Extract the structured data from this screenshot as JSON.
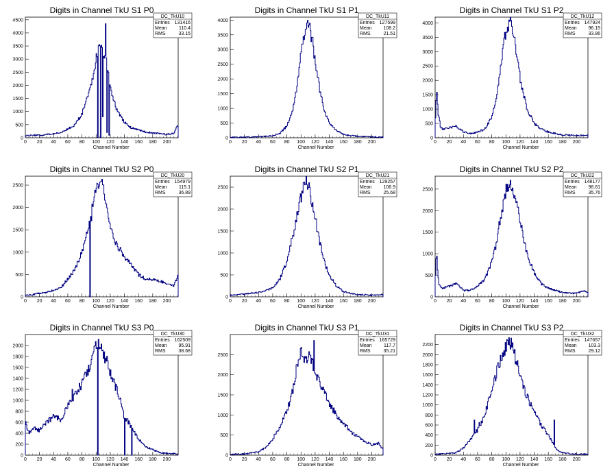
{
  "chart_data": [
    {
      "type": "histogram",
      "title": "Digits in Channel TkU S1 P0",
      "xlabel": "Channel Number",
      "ylabel": "",
      "xlim": [
        0,
        216
      ],
      "ylim": [
        0,
        4600
      ],
      "xticks": [
        0,
        20,
        40,
        60,
        80,
        100,
        120,
        140,
        160,
        180,
        200
      ],
      "yticks": [
        0,
        500,
        1000,
        1500,
        2000,
        2500,
        3000,
        3500,
        4000,
        4500
      ],
      "stats": {
        "name": "DC_TkU10",
        "entries": "131416",
        "mean": "110.4",
        "rms": "33.15"
      },
      "x": [
        0,
        10,
        20,
        30,
        40,
        50,
        60,
        70,
        80,
        90,
        95,
        100,
        104,
        106,
        108,
        110,
        112,
        114,
        116,
        120,
        130,
        140,
        150,
        160,
        170,
        180,
        190,
        200,
        210,
        215
      ],
      "values": [
        80,
        100,
        90,
        130,
        150,
        200,
        330,
        500,
        900,
        1700,
        2300,
        3000,
        3500,
        3520,
        3400,
        3300,
        3200,
        3000,
        2700,
        1900,
        1000,
        600,
        380,
        300,
        220,
        180,
        150,
        130,
        160,
        480
      ],
      "spikes": [
        {
          "x": 102,
          "value": 0
        },
        {
          "x": 106,
          "value": 0
        },
        {
          "x": 109,
          "value": 800
        },
        {
          "x": 113,
          "value": 4350
        },
        {
          "x": 115,
          "value": 200
        },
        {
          "x": 118,
          "value": 100
        }
      ]
    },
    {
      "type": "histogram",
      "title": "Digits in Channel TkU S1 P1",
      "xlabel": "Channel Number",
      "ylabel": "",
      "xlim": [
        0,
        216
      ],
      "ylim": [
        0,
        4100
      ],
      "xticks": [
        0,
        20,
        40,
        60,
        80,
        100,
        120,
        140,
        160,
        180,
        200
      ],
      "yticks": [
        0,
        500,
        1000,
        1500,
        2000,
        2500,
        3000,
        3500,
        4000
      ],
      "stats": {
        "name": "DC_TkU11",
        "entries": "127599",
        "mean": "108.2",
        "rms": "21.51"
      },
      "x": [
        0,
        20,
        40,
        60,
        70,
        80,
        88,
        94,
        100,
        104,
        108,
        110,
        112,
        116,
        120,
        126,
        132,
        140,
        150,
        160,
        180,
        200,
        215
      ],
      "values": [
        10,
        20,
        30,
        70,
        150,
        400,
        900,
        1700,
        2800,
        3500,
        3800,
        3850,
        3750,
        3300,
        2600,
        1700,
        1000,
        500,
        250,
        120,
        50,
        30,
        20
      ],
      "spikes": []
    },
    {
      "type": "histogram",
      "title": "Digits in Channel TkU S1 P2",
      "xlabel": "Channel Number",
      "ylabel": "",
      "xlim": [
        0,
        216
      ],
      "ylim": [
        0,
        4200
      ],
      "xticks": [
        0,
        20,
        40,
        60,
        80,
        100,
        120,
        140,
        160,
        180,
        200
      ],
      "yticks": [
        0,
        500,
        1000,
        1500,
        2000,
        2500,
        3000,
        3500,
        4000
      ],
      "stats": {
        "name": "DC_TkU12",
        "entries": "147924",
        "mean": "96.15",
        "rms": "33.86"
      },
      "x": [
        0,
        2,
        4,
        8,
        12,
        20,
        30,
        40,
        50,
        60,
        70,
        80,
        86,
        92,
        98,
        102,
        106,
        110,
        116,
        122,
        130,
        140,
        150,
        160,
        180,
        200,
        215
      ],
      "values": [
        300,
        1750,
        900,
        350,
        300,
        350,
        400,
        200,
        150,
        200,
        300,
        700,
        1300,
        2300,
        3400,
        3900,
        4000,
        3700,
        2800,
        1800,
        1000,
        500,
        300,
        200,
        100,
        80,
        80
      ],
      "spikes": []
    },
    {
      "type": "histogram",
      "title": "Digits in Channel TkU S2 P0",
      "xlabel": "Channel Number",
      "ylabel": "",
      "xlim": [
        0,
        216
      ],
      "ylim": [
        0,
        2700
      ],
      "xticks": [
        0,
        20,
        40,
        60,
        80,
        100,
        120,
        140,
        160,
        180,
        200
      ],
      "yticks": [
        0,
        500,
        1000,
        1500,
        2000,
        2500
      ],
      "stats": {
        "name": "DC_TkU20",
        "entries": "154979",
        "mean": "115.1",
        "rms": "36.89"
      },
      "x": [
        0,
        10,
        20,
        30,
        40,
        50,
        60,
        70,
        80,
        86,
        92,
        96,
        100,
        104,
        108,
        112,
        116,
        120,
        126,
        132,
        140,
        146,
        150,
        156,
        160,
        170,
        180,
        190,
        200,
        210,
        215
      ],
      "values": [
        30,
        50,
        80,
        100,
        150,
        200,
        400,
        600,
        1000,
        1400,
        1800,
        2200,
        2400,
        2550,
        2500,
        2300,
        2000,
        1600,
        1300,
        1100,
        900,
        800,
        700,
        600,
        500,
        400,
        380,
        350,
        300,
        250,
        450
      ],
      "spikes": [
        {
          "x": 93,
          "value": 1700
        },
        {
          "x": 91,
          "value": 0
        }
      ]
    },
    {
      "type": "histogram",
      "title": "Digits in Channel TkU S2 P1",
      "xlabel": "Channel Number",
      "ylabel": "",
      "xlim": [
        0,
        216
      ],
      "ylim": [
        0,
        2750
      ],
      "xticks": [
        0,
        20,
        40,
        60,
        80,
        100,
        120,
        140,
        160,
        180,
        200
      ],
      "yticks": [
        0,
        500,
        1000,
        1500,
        2000,
        2500
      ],
      "stats": {
        "name": "DC_TkU21",
        "entries": "129257",
        "mean": "106.9",
        "rms": "25.68"
      },
      "x": [
        0,
        20,
        40,
        60,
        70,
        80,
        90,
        96,
        102,
        106,
        110,
        114,
        120,
        126,
        132,
        140,
        150,
        160,
        180,
        200,
        215
      ],
      "values": [
        40,
        60,
        100,
        200,
        400,
        800,
        1500,
        2000,
        2400,
        2600,
        2550,
        2300,
        1800,
        1300,
        850,
        500,
        250,
        120,
        50,
        40,
        50
      ],
      "spikes": []
    },
    {
      "type": "histogram",
      "title": "Digits in Channel TkU S2 P2",
      "xlabel": "Channel Number",
      "ylabel": "",
      "xlim": [
        0,
        216
      ],
      "ylim": [
        0,
        2800
      ],
      "xticks": [
        0,
        20,
        40,
        60,
        80,
        100,
        120,
        140,
        160,
        180,
        200
      ],
      "yticks": [
        0,
        500,
        1000,
        1500,
        2000,
        2500
      ],
      "stats": {
        "name": "DC_TkU22",
        "entries": "148177",
        "mean": "98.61",
        "rms": "35.76"
      },
      "x": [
        0,
        2,
        5,
        10,
        20,
        30,
        40,
        50,
        60,
        70,
        80,
        86,
        92,
        98,
        102,
        106,
        110,
        116,
        122,
        130,
        140,
        150,
        160,
        180,
        200,
        210,
        215
      ],
      "values": [
        300,
        1000,
        300,
        200,
        250,
        300,
        150,
        150,
        250,
        400,
        800,
        1200,
        1800,
        2300,
        2550,
        2650,
        2500,
        2100,
        1600,
        1000,
        550,
        300,
        200,
        100,
        80,
        150,
        100
      ],
      "spikes": []
    },
    {
      "type": "histogram",
      "title": "Digits in Channel TkU S3 P0",
      "xlabel": "Channel Number",
      "ylabel": "",
      "xlim": [
        0,
        216
      ],
      "ylim": [
        0,
        2200
      ],
      "xticks": [
        0,
        20,
        40,
        60,
        80,
        100,
        120,
        140,
        160,
        180,
        200
      ],
      "yticks": [
        0,
        200,
        400,
        600,
        800,
        1000,
        1200,
        1400,
        1600,
        1800,
        2000
      ],
      "stats": {
        "name": "DC_TkU30",
        "entries": "162509",
        "mean": "95.91",
        "rms": "38.68"
      },
      "x": [
        0,
        5,
        10,
        20,
        30,
        40,
        50,
        60,
        70,
        80,
        90,
        96,
        100,
        104,
        108,
        112,
        116,
        120,
        126,
        130,
        136,
        140,
        146,
        150,
        160,
        170,
        180,
        190,
        200,
        210,
        215
      ],
      "values": [
        600,
        400,
        500,
        450,
        600,
        700,
        650,
        900,
        1100,
        1300,
        1600,
        1800,
        2000,
        2050,
        1950,
        1800,
        1700,
        1500,
        1300,
        1200,
        900,
        700,
        600,
        500,
        300,
        150,
        100,
        50,
        30,
        30,
        20
      ],
      "spikes": [
        {
          "x": 102,
          "value": 0
        },
        {
          "x": 140,
          "value": 0
        },
        {
          "x": 150,
          "value": 0
        },
        {
          "x": 66,
          "value": 1200
        }
      ]
    },
    {
      "type": "histogram",
      "title": "Digits in Channel TkU S3 P1",
      "xlabel": "Channel Number",
      "ylabel": "",
      "xlim": [
        0,
        216
      ],
      "ylim": [
        0,
        3000
      ],
      "xticks": [
        0,
        20,
        40,
        60,
        80,
        100,
        120,
        140,
        160,
        180,
        200
      ],
      "yticks": [
        0,
        500,
        1000,
        1500,
        2000,
        2500
      ],
      "stats": {
        "name": "DC_TkU31",
        "entries": "165729",
        "mean": "117.7",
        "rms": "35.21"
      },
      "x": [
        0,
        20,
        40,
        50,
        60,
        70,
        80,
        90,
        96,
        100,
        104,
        108,
        112,
        116,
        120,
        126,
        132,
        140,
        150,
        160,
        170,
        180,
        190,
        200,
        210,
        215
      ],
      "values": [
        20,
        30,
        80,
        200,
        400,
        700,
        1100,
        1700,
        2400,
        2600,
        2300,
        2400,
        2500,
        2300,
        2000,
        1800,
        1600,
        1300,
        1000,
        800,
        600,
        450,
        350,
        250,
        300,
        150
      ],
      "spikes": [
        {
          "x": 118,
          "value": 2850
        },
        {
          "x": 99,
          "value": 2650
        }
      ]
    },
    {
      "type": "histogram",
      "title": "Digits in Channel TkU S3 P2",
      "xlabel": "Channel Number",
      "ylabel": "",
      "xlim": [
        0,
        216
      ],
      "ylim": [
        0,
        2400
      ],
      "xticks": [
        0,
        20,
        40,
        60,
        80,
        100,
        120,
        140,
        160,
        180,
        200
      ],
      "yticks": [
        0,
        200,
        400,
        600,
        800,
        1000,
        1200,
        1400,
        1600,
        1800,
        2000,
        2200
      ],
      "stats": {
        "name": "DC_TkU32",
        "entries": "147657",
        "mean": "103.3",
        "rms": "29.12"
      },
      "x": [
        0,
        20,
        30,
        40,
        50,
        60,
        70,
        76,
        80,
        86,
        90,
        96,
        100,
        104,
        108,
        112,
        116,
        120,
        126,
        132,
        140,
        150,
        160,
        168,
        172,
        180,
        200,
        215
      ],
      "values": [
        20,
        30,
        50,
        150,
        300,
        500,
        800,
        1100,
        1300,
        1600,
        1800,
        2000,
        2150,
        2250,
        2200,
        2000,
        1800,
        1600,
        1300,
        1100,
        900,
        600,
        400,
        200,
        100,
        50,
        20,
        20
      ],
      "spikes": [
        {
          "x": 168,
          "value": 700
        },
        {
          "x": 55,
          "value": 700
        },
        {
          "x": 62,
          "value": 650
        }
      ]
    }
  ]
}
